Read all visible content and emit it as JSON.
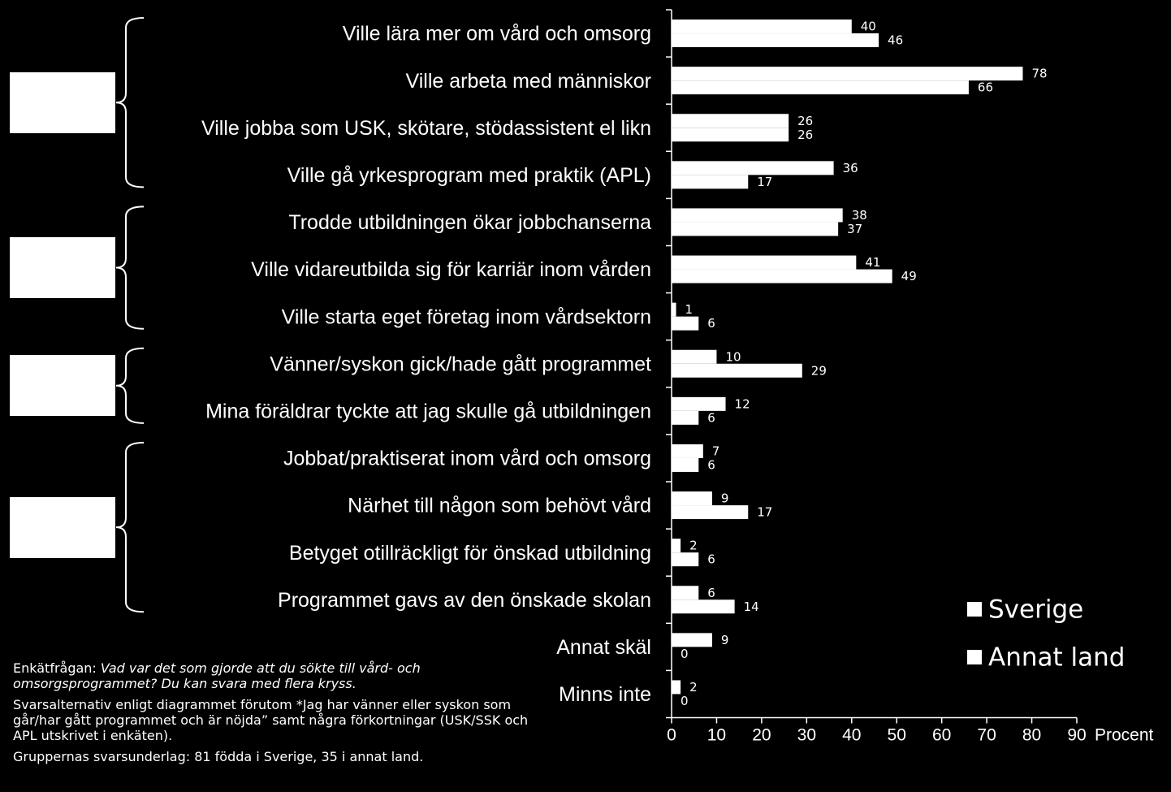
{
  "chart_data": {
    "type": "bar",
    "orientation": "horizontal",
    "categories": [
      "Ville lära mer om vård och omsorg",
      "Ville arbeta med människor",
      "Ville jobba som USK, skötare, stödassistent el likn",
      "Ville gå yrkesprogram med praktik (APL)",
      "Trodde utbildningen ökar jobbchanserna",
      "Ville vidareutbilda sig för karriär inom vården",
      "Ville starta eget företag inom vårdsektorn",
      "Vänner/syskon gick/hade gått programmet",
      "Mina föräldrar tyckte att jag skulle gå utbildningen",
      "Jobbat/praktiserat inom vård och omsorg",
      "Närhet till någon som behövt vård",
      "Betyget otillräckligt för önskad utbildning",
      "Programmet gavs av den önskade skolan",
      "Annat skäl",
      "Minns inte"
    ],
    "series": [
      {
        "name": "Sverige",
        "values": [
          40,
          78,
          26,
          36,
          38,
          41,
          1,
          10,
          12,
          7,
          9,
          2,
          6,
          9,
          2
        ],
        "color": "#ffffff"
      },
      {
        "name": "Annat land",
        "values": [
          46,
          66,
          26,
          17,
          37,
          49,
          6,
          29,
          6,
          6,
          17,
          6,
          14,
          0,
          0
        ],
        "color": "#ffffff"
      }
    ],
    "xlim": [
      0,
      90
    ],
    "xticks": [
      "0",
      "10",
      "20",
      "30",
      "40",
      "50",
      "60",
      "70",
      "80",
      "90"
    ],
    "xlabel": "Procent",
    "legend_position": "bottom-right",
    "grid": false
  },
  "group_boxes": [
    {
      "first": 0,
      "last": 3
    },
    {
      "first": 4,
      "last": 6
    },
    {
      "first": 7,
      "last": 8
    },
    {
      "first": 9,
      "last": 12
    }
  ],
  "notes": {
    "question_label": "Enkätfrågan: ",
    "question_text": "Vad var det som gjorde att du sökte till vård- och omsorgsprogrammet? Du kan svara med flera kryss.",
    "answers_note": "Svarsalternativ enligt diagrammet förutom  *Jag har vänner eller syskon som går/har gått programmet och är nöjda” samt några förkortningar (USK/SSK  och APL utskrivet i enkäten).",
    "base_note": "Gruppernas svarsunderlag: 81 födda i Sverige, 35 i annat land."
  }
}
